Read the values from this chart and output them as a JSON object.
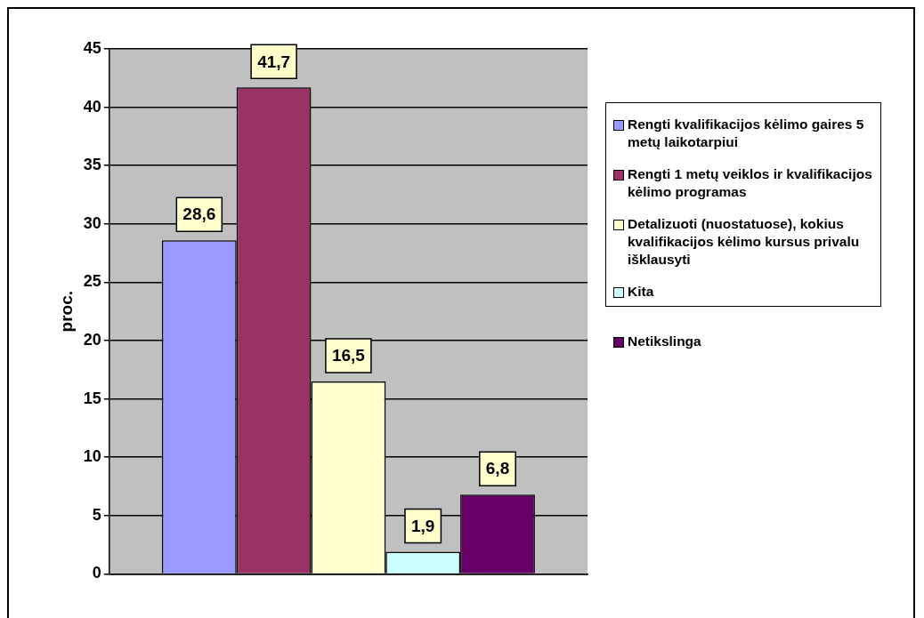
{
  "chart_data": {
    "type": "bar",
    "ylabel": "proc.",
    "categories": [
      null
    ],
    "series": [
      {
        "name": "Rengti kvalifikacijos kėlimo gaires 5 metų laikotarpiui",
        "color": "#9999ff",
        "values": [
          28.6
        ],
        "value_labels": [
          "28,6"
        ]
      },
      {
        "name": "Rengti 1 metų veiklos ir kvalifikacijos kėlimo programas",
        "color": "#993366",
        "values": [
          41.7
        ],
        "value_labels": [
          "41,7"
        ]
      },
      {
        "name": "Detalizuoti (nuostatuose), kokius kvalifikacijos kėlimo kursus privalu išklausyti",
        "color": "#ffffcc",
        "values": [
          16.5
        ],
        "value_labels": [
          "16,5"
        ]
      },
      {
        "name": "Kita",
        "color": "#ccffff",
        "values": [
          1.9
        ],
        "value_labels": [
          "1,9"
        ]
      },
      {
        "name": "Netikslinga",
        "color": "#660066",
        "values": [
          6.8
        ],
        "value_labels": [
          "6,8"
        ]
      }
    ],
    "ylim": [
      0,
      45
    ],
    "yticks": [
      0,
      5,
      10,
      15,
      20,
      25,
      30,
      35,
      40,
      45
    ],
    "grid": "y",
    "legend": "right"
  }
}
